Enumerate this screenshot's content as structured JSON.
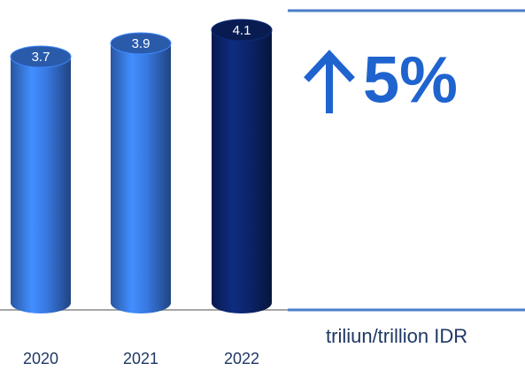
{
  "chart_data": {
    "type": "bar",
    "categories": [
      "2020",
      "2021",
      "2022"
    ],
    "values": [
      3.7,
      3.9,
      4.1
    ],
    "colors": [
      "#3572d6",
      "#3572d6",
      "#0b2366"
    ],
    "annotation": "5%",
    "unit_label": "triliun/trillion IDR"
  }
}
